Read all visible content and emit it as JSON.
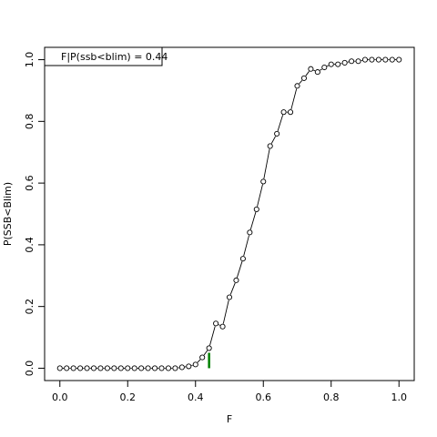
{
  "chart_data": {
    "type": "line",
    "xlabel": "F",
    "ylabel": "P(SSB<Blim)",
    "xlim": [
      -0.045,
      1.045
    ],
    "ylim": [
      -0.04,
      1.04
    ],
    "x_ticks": [
      "0.0",
      "0.2",
      "0.4",
      "0.6",
      "0.8",
      "1.0"
    ],
    "x_tick_values": [
      0,
      0.2,
      0.4,
      0.6,
      0.8,
      1.0
    ],
    "y_ticks": [
      "0.0",
      "0.2",
      "0.4",
      "0.6",
      "0.8",
      "1.0"
    ],
    "y_tick_values": [
      0,
      0.2,
      0.4,
      0.6,
      0.8,
      1.0
    ],
    "legend_text": "F|P(ssb<blim) =  0.44",
    "legend_position": "top-left",
    "marker_line": {
      "x": 0.44,
      "y_from": 0,
      "y_to": 0.05,
      "color": "#008000"
    },
    "series_color": "#000000",
    "x": [
      0,
      0.02,
      0.04,
      0.06,
      0.08,
      0.1,
      0.12,
      0.14,
      0.16,
      0.18,
      0.2,
      0.22,
      0.24,
      0.26,
      0.28,
      0.3,
      0.32,
      0.34,
      0.36,
      0.38,
      0.4,
      0.42,
      0.44,
      0.46,
      0.48,
      0.5,
      0.52,
      0.54,
      0.56,
      0.58,
      0.6,
      0.62,
      0.64,
      0.66,
      0.68,
      0.7,
      0.72,
      0.74,
      0.76,
      0.78,
      0.8,
      0.82,
      0.84,
      0.86,
      0.88,
      0.9,
      0.92,
      0.94,
      0.96,
      0.98,
      1.0
    ],
    "y": [
      0,
      0,
      0,
      0,
      0,
      0,
      0,
      0,
      0,
      0,
      0,
      0,
      0,
      0,
      0,
      0,
      0,
      0,
      0.003,
      0.006,
      0.012,
      0.035,
      0.065,
      0.145,
      0.135,
      0.23,
      0.285,
      0.355,
      0.44,
      0.515,
      0.605,
      0.72,
      0.76,
      0.83,
      0.83,
      0.915,
      0.94,
      0.97,
      0.96,
      0.975,
      0.985,
      0.985,
      0.99,
      0.995,
      0.995,
      1.0,
      1.0,
      1.0,
      1.0,
      1.0,
      1.0
    ]
  }
}
